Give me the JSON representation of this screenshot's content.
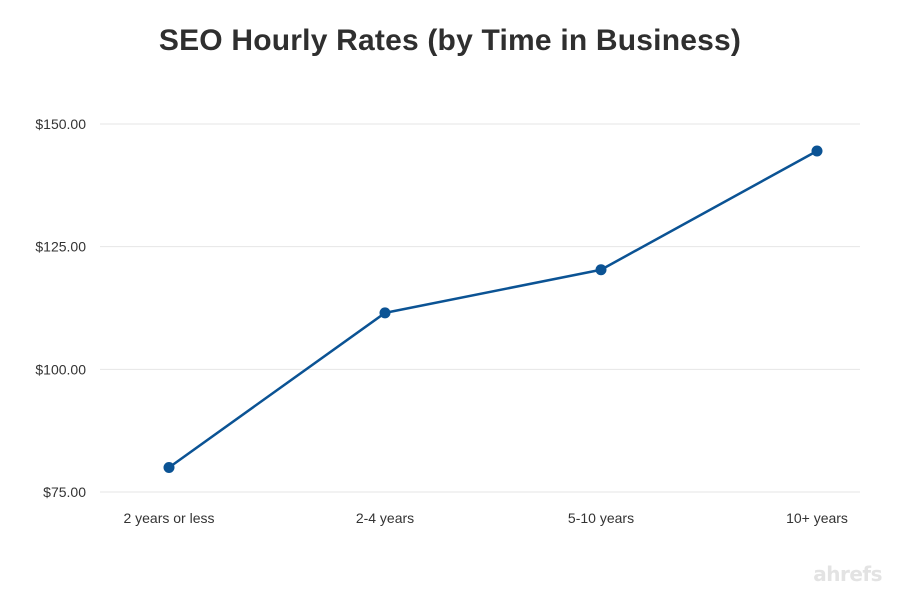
{
  "chart_data": {
    "type": "line",
    "title": "SEO Hourly Rates (by Time in Business)",
    "xlabel": "",
    "ylabel": "",
    "categories": [
      "2 years or less",
      "2-4 years",
      "5-10 years",
      "10+ years"
    ],
    "series": [
      {
        "values": [
          80,
          111.5,
          120.3,
          144.5
        ]
      }
    ],
    "ylim": [
      75,
      150
    ],
    "yticks": [
      75,
      100,
      125,
      150
    ],
    "ytick_labels": [
      "$75.00",
      "$100.00",
      "$125.00",
      "$150.00"
    ],
    "grid": true,
    "line_color": "#0b5394",
    "grid_color": "#e6e6e6"
  },
  "watermark": "ahrefs"
}
